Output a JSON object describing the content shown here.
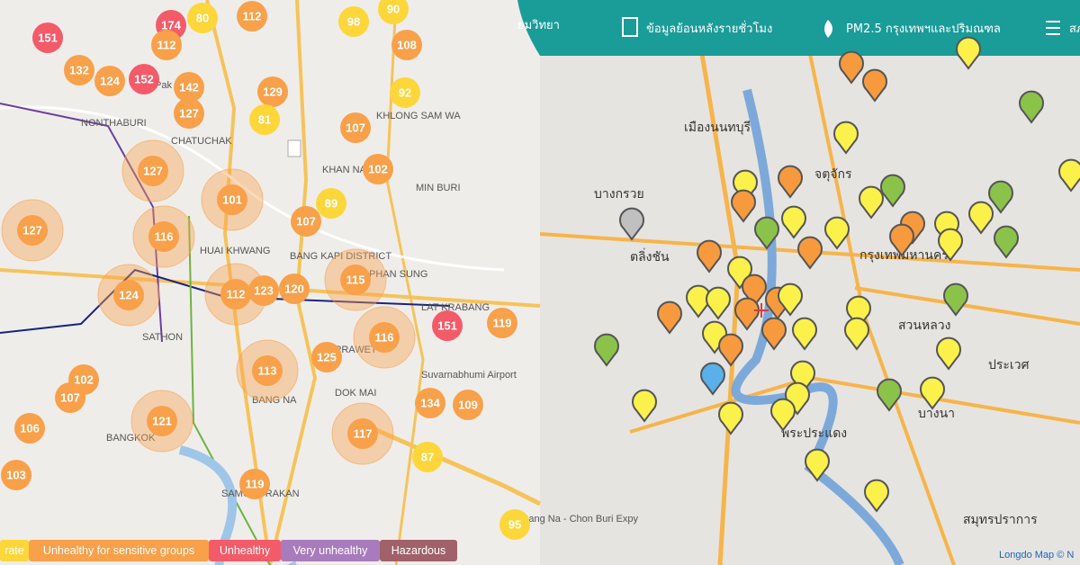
{
  "top_nav": {
    "items": [
      "ยมวิทยา",
      "ข้อมูลย้อนหลังรายชั่วโมง",
      "PM2.5 กรุงเทพฯและปริมณฑล",
      "สภ"
    ]
  },
  "left_map": {
    "place_labels": [
      "Pak Kret",
      "NONTHABURI",
      "CHATUCHAK",
      "HUAI KHWANG",
      "KHLONG SAM WA",
      "KHAN NA",
      "MIN BURI",
      "BANG KAPI DISTRICT",
      "PHAN SUNG",
      "LAT KRABANG",
      "SATHON",
      "PRAWET",
      "Suvarnabhumi Airport",
      "DOK MAI",
      "BANG NA",
      "BANGKOK",
      "SAMUT PRAKAN",
      "Bang Na - Chon Buri Expy"
    ],
    "aqi_markers": [
      {
        "value": 151,
        "color": "#f45b69"
      },
      {
        "value": 174,
        "color": "#f45b69"
      },
      {
        "value": 80,
        "color": "#fdd63a"
      },
      {
        "value": 112,
        "color": "#f9a04a"
      },
      {
        "value": 98,
        "color": "#fdd63a"
      },
      {
        "value": 90,
        "color": "#fdd63a"
      },
      {
        "value": 112,
        "color": "#f9a04a"
      },
      {
        "value": 108,
        "color": "#f9a04a"
      },
      {
        "value": 132,
        "color": "#f9a04a"
      },
      {
        "value": 124,
        "color": "#f9a04a"
      },
      {
        "value": 152,
        "color": "#f45b69"
      },
      {
        "value": 142,
        "color": "#f9a04a"
      },
      {
        "value": 129,
        "color": "#f9a04a"
      },
      {
        "value": 92,
        "color": "#fdd63a"
      },
      {
        "value": 127,
        "color": "#f9a04a"
      },
      {
        "value": 81,
        "color": "#fdd63a"
      },
      {
        "value": 107,
        "color": "#f9a04a"
      },
      {
        "value": 102,
        "color": "#f9a04a"
      },
      {
        "value": 127,
        "color": "#f9a04a"
      },
      {
        "value": 101,
        "color": "#f9a04a"
      },
      {
        "value": 89,
        "color": "#fdd63a"
      },
      {
        "value": 107,
        "color": "#f9a04a"
      },
      {
        "value": 127,
        "color": "#f9a04a"
      },
      {
        "value": 116,
        "color": "#f9a04a"
      },
      {
        "value": 124,
        "color": "#f9a04a"
      },
      {
        "value": 112,
        "color": "#f9a04a"
      },
      {
        "value": 123,
        "color": "#f9a04a"
      },
      {
        "value": 120,
        "color": "#f9a04a"
      },
      {
        "value": 115,
        "color": "#f9a04a"
      },
      {
        "value": 151,
        "color": "#f45b69"
      },
      {
        "value": 119,
        "color": "#f9a04a"
      },
      {
        "value": 116,
        "color": "#f9a04a"
      },
      {
        "value": 125,
        "color": "#f9a04a"
      },
      {
        "value": 113,
        "color": "#f9a04a"
      },
      {
        "value": 102,
        "color": "#f9a04a"
      },
      {
        "value": 107,
        "color": "#f9a04a"
      },
      {
        "value": 134,
        "color": "#f9a04a"
      },
      {
        "value": 109,
        "color": "#f9a04a"
      },
      {
        "value": 121,
        "color": "#f9a04a"
      },
      {
        "value": 106,
        "color": "#f9a04a"
      },
      {
        "value": 117,
        "color": "#f9a04a"
      },
      {
        "value": 87,
        "color": "#fdd63a"
      },
      {
        "value": 103,
        "color": "#f9a04a"
      },
      {
        "value": 119,
        "color": "#f9a04a"
      },
      {
        "value": 95,
        "color": "#fdd63a"
      }
    ]
  },
  "right_map": {
    "place_labels": [
      "เมืองนนทบุรี",
      "บางกรวย",
      "จตุจักร",
      "กรุงเทพมหานคร",
      "สวนหลวง",
      "ประเวศ",
      "พระประแดง",
      "สมุทรปราการ",
      "บางนา",
      "ตลิ่งชัน"
    ]
  },
  "legend": {
    "items": [
      {
        "label": "rate",
        "color": "#fdd63a"
      },
      {
        "label": "Unhealthy for sensitive groups",
        "color": "#f9a04a"
      },
      {
        "label": "Unhealthy",
        "color": "#f45b69"
      },
      {
        "label": "Very unhealthy",
        "color": "#a87bbd"
      },
      {
        "label": "Hazardous",
        "color": "#a0616a"
      }
    ]
  },
  "attribution": "Longdo Map © N"
}
